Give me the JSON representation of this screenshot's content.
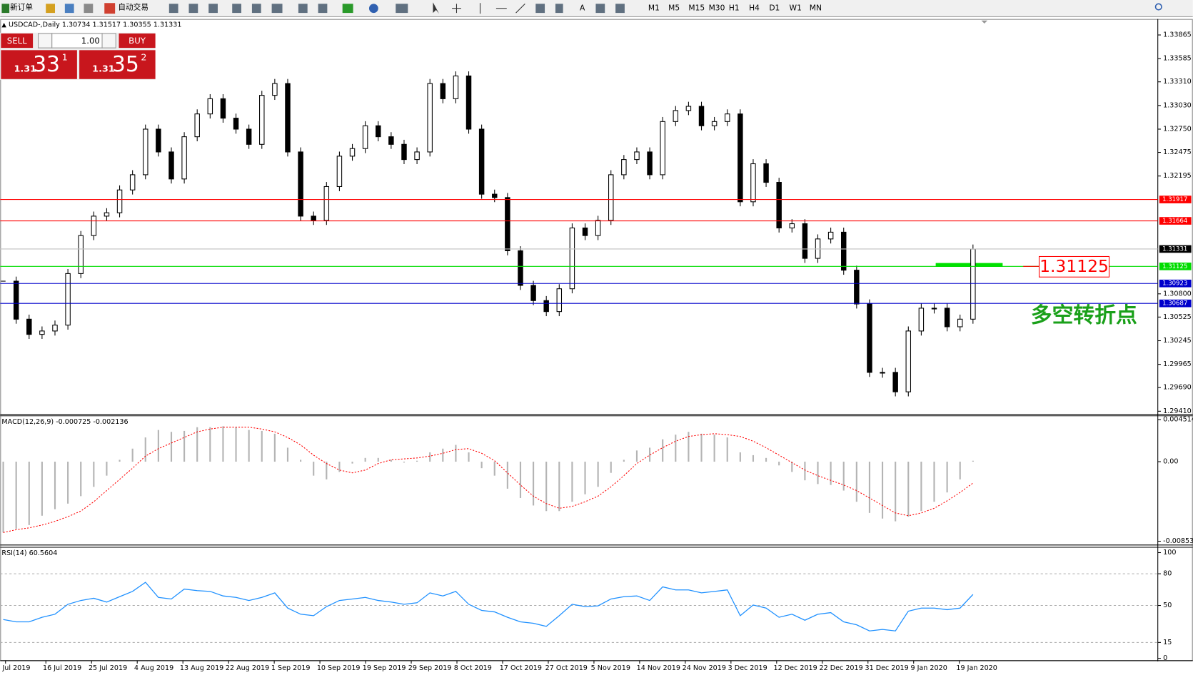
{
  "toolbar": {
    "new_order": "新订单",
    "auto_trading": "自动交易",
    "periods": [
      "M1",
      "M5",
      "M15",
      "M30",
      "H1",
      "H4",
      "D1",
      "W1",
      "MN"
    ]
  },
  "trade_panel": {
    "sell_label": "SELL",
    "buy_label": "BUY",
    "lot": "1.00",
    "sell": {
      "prefix": "1.31",
      "big": "33",
      "sup": "1"
    },
    "buy": {
      "prefix": "1.31",
      "big": "35",
      "sup": "2"
    }
  },
  "chart_data": [
    {
      "type": "candlestick",
      "title": "USDCAD-,Daily  1.30734 1.31517 1.30355 1.31331",
      "closes": [
        1.3095,
        1.305,
        1.3032,
        1.3036,
        1.3043,
        1.3104,
        1.3149,
        1.3172,
        1.3176,
        1.3203,
        1.3221,
        1.3275,
        1.3248,
        1.3216,
        1.3266,
        1.3293,
        1.3311,
        1.3288,
        1.3275,
        1.3257,
        1.3315,
        1.3329,
        1.3248,
        1.3172,
        1.3167,
        1.3207,
        1.3243,
        1.3252,
        1.3279,
        1.3266,
        1.3257,
        1.3239,
        1.3248,
        1.3329,
        1.3311,
        1.3338,
        1.3275,
        1.3198,
        1.3194,
        1.3131,
        1.309,
        1.3072,
        1.3059,
        1.3086,
        1.3158,
        1.3149,
        1.3167,
        1.3221,
        1.3239,
        1.3248,
        1.3221,
        1.3284,
        1.3297,
        1.3302,
        1.3279,
        1.3284,
        1.3293,
        1.3189,
        1.3234,
        1.3212,
        1.3158,
        1.3163,
        1.3122,
        1.3145,
        1.3153,
        1.3108,
        1.3068,
        1.2987,
        1.2987,
        1.2964,
        1.3036,
        1.3063,
        1.3063,
        1.3041,
        1.305,
        1.3133
      ],
      "ylim": [
        1.29374,
        1.34045
      ],
      "yticks": [
        1.33865,
        1.33585,
        {
          "value": 1.3331,
          "label": "1.33310"
        },
        {
          "value": 1.3303,
          "label": "1.33030"
        },
        {
          "value": 1.3275,
          "label": "1.32750"
        },
        1.32475,
        1.32195,
        {
          "value": 1.308,
          "label": "1.30800"
        },
        1.30525,
        1.30245,
        1.29965,
        {
          "value": 1.2969,
          "label": "1.29690"
        },
        {
          "value": 1.2941,
          "label": "1.29410"
        }
      ],
      "levels": [
        {
          "value": 1.31917,
          "color": "#ff0000"
        },
        {
          "value": 1.31664,
          "color": "#ff0000"
        },
        {
          "value": 1.31125,
          "color": "#00dd00"
        },
        {
          "value": 1.30923,
          "color": "#0000cc"
        },
        {
          "value": 1.30687,
          "color": "#0000cc"
        }
      ],
      "current": 1.31331,
      "annotation": "多空转折点",
      "x_labels": [
        "Jul 2019",
        "16 Jul 2019",
        "25 Jul 2019",
        "4 Aug 2019",
        "13 Aug 2019",
        "22 Aug 2019",
        "1 Sep 2019",
        "10 Sep 2019",
        "19 Sep 2019",
        "29 Sep 2019",
        "8 Oct 2019",
        "17 Oct 2019",
        "27 Oct 2019",
        "5 Nov 2019",
        "14 Nov 2019",
        "24 Nov 2019",
        "3 Dec 2019",
        "12 Dec 2019",
        "22 Dec 2019",
        "31 Dec 2019",
        "9 Jan 2020",
        "19 Jan 2020"
      ]
    },
    {
      "type": "macd",
      "title": "MACD(12,26,9) -0.000725 -0.002136",
      "histogram": {
        "color": "#b4b4b4",
        "values": [
          -0.0076,
          -0.0072,
          -0.0068,
          -0.0058,
          -0.0051,
          -0.0045,
          -0.0037,
          -0.0027,
          -0.0015,
          0.0002,
          0.0014,
          0.0026,
          0.0034,
          0.0032,
          0.0033,
          0.0037,
          0.0037,
          0.0038,
          0.0037,
          0.0034,
          0.0033,
          0.003,
          0.0015,
          0.0002,
          -0.0015,
          -0.0019,
          -0.0011,
          -0.0002,
          0.0004,
          0.0004,
          0.0002,
          -0.0001,
          0.0001,
          0.001,
          0.0014,
          0.0018,
          0.001,
          -0.0007,
          -0.0015,
          -0.0029,
          -0.0039,
          -0.0047,
          -0.0053,
          -0.0053,
          -0.0043,
          -0.0035,
          -0.0027,
          -0.0012,
          0.0002,
          0.0012,
          0.0015,
          0.0024,
          0.0029,
          0.0032,
          0.003,
          0.0029,
          0.0026,
          0.001,
          0.0007,
          0.0004,
          -0.0004,
          -0.0011,
          -0.002,
          -0.0024,
          -0.0025,
          -0.0031,
          -0.0043,
          -0.0055,
          -0.0061,
          -0.0064,
          -0.0059,
          -0.0053,
          -0.0043,
          -0.0033,
          -0.0019,
          0.0001
        ]
      },
      "signal": {
        "color": "#ff0000",
        "values": [
          -0.0076,
          -0.0073,
          -0.0071,
          -0.0068,
          -0.0064,
          -0.0059,
          -0.0053,
          -0.0043,
          -0.0031,
          -0.0019,
          -0.0007,
          0.0006,
          0.0014,
          0.002,
          0.0026,
          0.0032,
          0.0035,
          0.0037,
          0.0037,
          0.0037,
          0.0035,
          0.0032,
          0.0026,
          0.0018,
          0.0007,
          -0.0002,
          -0.0009,
          -0.0012,
          -0.0009,
          -0.0002,
          0.0002,
          0.0003,
          0.0004,
          0.0006,
          0.0009,
          0.0013,
          0.0014,
          0.0009,
          0.0001,
          -0.0012,
          -0.0025,
          -0.0037,
          -0.0045,
          -0.005,
          -0.0048,
          -0.0043,
          -0.0037,
          -0.0027,
          -0.0015,
          -0.0002,
          0.0007,
          0.0015,
          0.0022,
          0.0027,
          0.0029,
          0.003,
          0.0029,
          0.0027,
          0.0022,
          0.0015,
          0.0007,
          -0.0001,
          -0.0009,
          -0.0015,
          -0.002,
          -0.0025,
          -0.0031,
          -0.0039,
          -0.0047,
          -0.0055,
          -0.0058,
          -0.0055,
          -0.005,
          -0.0042,
          -0.0033,
          -0.0023
        ]
      },
      "ylim": [
        -0.008941,
        0.004922
      ],
      "yticks": [
        0.004514,
        {
          "value": 0,
          "label": "0.00"
        },
        -0.008533
      ]
    },
    {
      "type": "rsi",
      "title": "RSI(14) 60.5604",
      "color": "#1e90ff",
      "values": [
        36.7,
        34.5,
        34.5,
        38.8,
        41.7,
        51.1,
        54.7,
        56.8,
        53.2,
        58.3,
        63.3,
        71.9,
        57.6,
        56.1,
        65.5,
        64,
        63.3,
        59,
        57.6,
        54.7,
        57.6,
        61.9,
        47.5,
        41.7,
        40.3,
        48.9,
        54.7,
        56.1,
        57.6,
        54.7,
        53.2,
        51.1,
        52.5,
        61.9,
        59,
        63.3,
        51.1,
        45.3,
        43.9,
        38.8,
        34.5,
        33.1,
        30.2,
        40.3,
        51.1,
        48.9,
        49.6,
        56.1,
        58.3,
        59,
        54.7,
        67.6,
        64.7,
        64.7,
        61.9,
        63.3,
        64.7,
        40.3,
        50.4,
        47.5,
        38.8,
        41.7,
        36,
        41.7,
        43.2,
        34.5,
        31.7,
        25.9,
        27.3,
        25.9,
        44.6,
        47.5,
        47.5,
        46,
        47.5,
        60.4
      ],
      "ylim": [
        0,
        100
      ],
      "yticks": [
        100,
        80,
        50,
        15,
        0
      ]
    }
  ]
}
